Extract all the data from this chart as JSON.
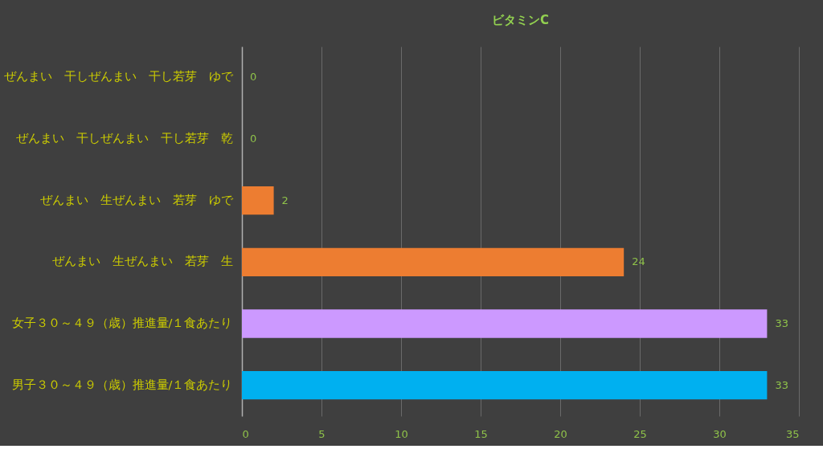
{
  "chart_data": {
    "type": "bar",
    "orientation": "horizontal",
    "title": "ビタミンC",
    "categories": [
      "ぜんまい　干しぜんまい　干し若芽　ゆで",
      "ぜんまい　干しぜんまい　干し若芽　乾",
      "ぜんまい　生ぜんまい　若芽　ゆで",
      "ぜんまい　生ぜんまい　若芽　生",
      "女子３０～４９（歳）推進量/１食あたり",
      "男子３０～４９（歳）推進量/１食あたり"
    ],
    "values": [
      0,
      0,
      2,
      24,
      33,
      33
    ],
    "colors": [
      "#ed7d31",
      "#ed7d31",
      "#ed7d31",
      "#ed7d31",
      "#cc99ff",
      "#00b0f0"
    ],
    "xlim": [
      0,
      35
    ],
    "xticks": [
      0,
      5,
      10,
      15,
      20,
      25,
      30,
      35
    ],
    "grid": "x",
    "data_labels": true
  }
}
